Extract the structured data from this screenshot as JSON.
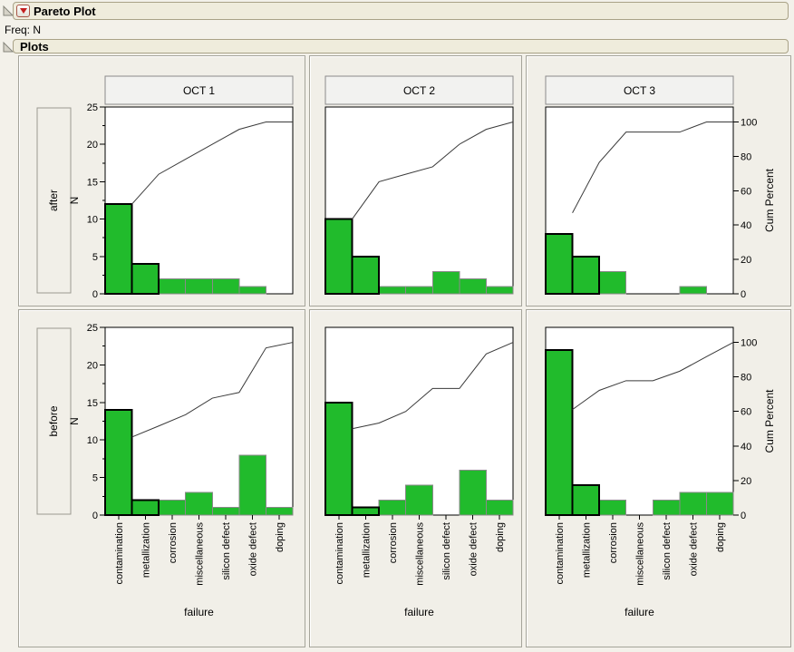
{
  "header": {
    "title": "Pareto Plot",
    "freq_label": "Freq: N",
    "plots_label": "Plots",
    "icons": [
      "disclosure-triangle-icon",
      "red-triangle-menu-icon"
    ]
  },
  "chart_data": {
    "type": "bar",
    "title": "Pareto Plot",
    "subtitle": "Plots",
    "xlabel": "failure",
    "ylabel_left": "N",
    "ylabel_right": "Cum Percent",
    "ylim_left": [
      0,
      25
    ],
    "ylim_right": [
      0,
      100
    ],
    "left_ticks": [
      0,
      5,
      10,
      15,
      20,
      25
    ],
    "right_ticks": [
      0,
      20,
      40,
      60,
      80,
      100
    ],
    "right_axis_100_at_N": 23,
    "grid": false,
    "legend": "none",
    "categories": [
      "contamination",
      "metallization",
      "corrosion",
      "miscellaneous",
      "silicon defect",
      "oxide defect",
      "doping"
    ],
    "highlighted_categories": [
      "contamination",
      "metallization"
    ],
    "col_groups": [
      "OCT 1",
      "OCT 2",
      "OCT 3"
    ],
    "row_groups": [
      "after",
      "before"
    ],
    "cells": [
      {
        "row": "after",
        "col": "OCT 1",
        "values": [
          12,
          4,
          2,
          2,
          2,
          1,
          0
        ],
        "total": 23,
        "cum_percent": [
          52.2,
          69.6,
          78.3,
          87.0,
          95.7,
          100,
          100
        ]
      },
      {
        "row": "after",
        "col": "OCT 2",
        "values": [
          10,
          5,
          1,
          1,
          3,
          2,
          1
        ],
        "total": 23,
        "cum_percent": [
          43.5,
          65.2,
          69.6,
          73.9,
          87.0,
          95.7,
          100
        ]
      },
      {
        "row": "after",
        "col": "OCT 3",
        "values": [
          8,
          5,
          3,
          0,
          0,
          1,
          0
        ],
        "total": 17,
        "cum_percent": [
          47.1,
          76.5,
          94.1,
          94.1,
          94.1,
          100,
          100
        ]
      },
      {
        "row": "before",
        "col": "OCT 1",
        "values": [
          14,
          2,
          2,
          3,
          1,
          8,
          1
        ],
        "total": 31,
        "cum_percent": [
          45.2,
          51.6,
          58.1,
          67.7,
          71.0,
          96.8,
          100
        ]
      },
      {
        "row": "before",
        "col": "OCT 2",
        "values": [
          15,
          1,
          2,
          4,
          0,
          6,
          2
        ],
        "total": 30,
        "cum_percent": [
          50.0,
          53.3,
          60.0,
          73.3,
          73.3,
          93.3,
          100
        ]
      },
      {
        "row": "before",
        "col": "OCT 3",
        "values": [
          22,
          4,
          2,
          0,
          2,
          3,
          3
        ],
        "total": 36,
        "cum_percent": [
          61.1,
          72.2,
          77.8,
          77.8,
          83.3,
          91.7,
          100
        ]
      }
    ],
    "colors": {
      "bar_fill": "#21bb2c",
      "bar_border": "#8a8a8a",
      "selected_bar_border": "#000000",
      "cum_line": "#3a3a3a",
      "plot_background": "#ffffff",
      "panel_background": "#f1efe8",
      "header_bar_background": "#efecdc",
      "group_title_background": "#f2f2f0"
    }
  }
}
